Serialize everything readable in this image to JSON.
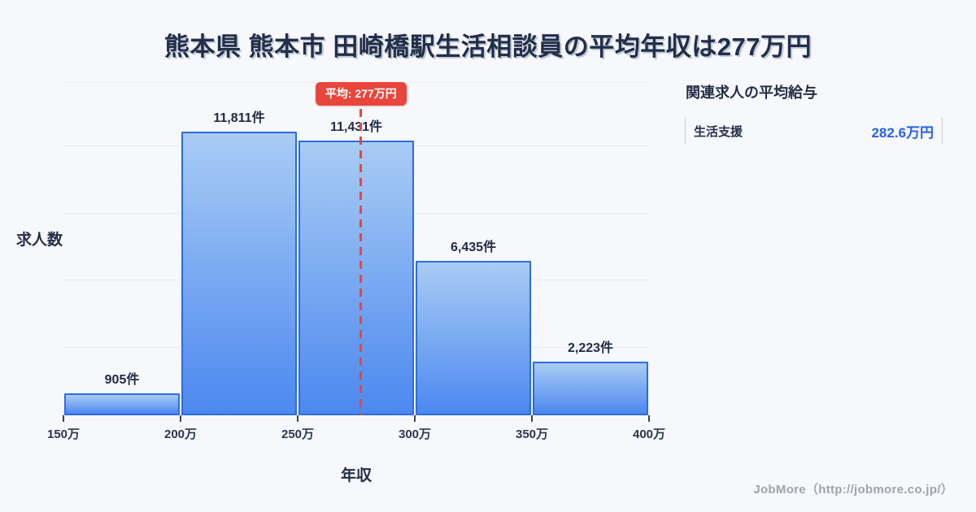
{
  "title": "熊本県 熊本市 田崎橋駅生活相談員の平均年収は277万円",
  "chart_data": {
    "type": "bar",
    "title": "熊本県 熊本市 田崎橋駅生活相談員の平均年収は277万円",
    "xlabel": "年収",
    "ylabel": "求人数",
    "x_tick_labels": [
      "150万",
      "200万",
      "250万",
      "300万",
      "350万",
      "400万"
    ],
    "x_range_man_yen": [
      150,
      400
    ],
    "bin_width_man_yen": 50,
    "categories": [
      "150万-200万",
      "200万-250万",
      "250万-300万",
      "300万-350万",
      "350万-400万"
    ],
    "values": [
      905,
      11811,
      11431,
      6435,
      2223
    ],
    "bar_labels": [
      "905件",
      "11,811件",
      "11,431件",
      "6,435件",
      "2,223件"
    ],
    "average": {
      "value_man_yen": 277,
      "badge_label": "平均: 277万円"
    },
    "ylim": [
      0,
      14000
    ],
    "grid": "horizontal-only",
    "legend": "none"
  },
  "side_panel": {
    "heading": "関連求人の平均給与",
    "rows": [
      {
        "label": "生活支援",
        "value": "282.6万円"
      }
    ]
  },
  "footer": {
    "credit": "JobMore（http://jobmore.co.jp/）"
  },
  "colors": {
    "background": "#f7f8fb",
    "title_text": "#232e47",
    "bar_border": "#2b6ce0",
    "bar_gradient_top": "#a9ccf4",
    "bar_gradient_bottom": "#4c88ef",
    "gridline": "#e8eaf0",
    "average_red": "#e8463d",
    "related_value_blue": "#2563eb",
    "footer_gray": "#9da3ad"
  }
}
